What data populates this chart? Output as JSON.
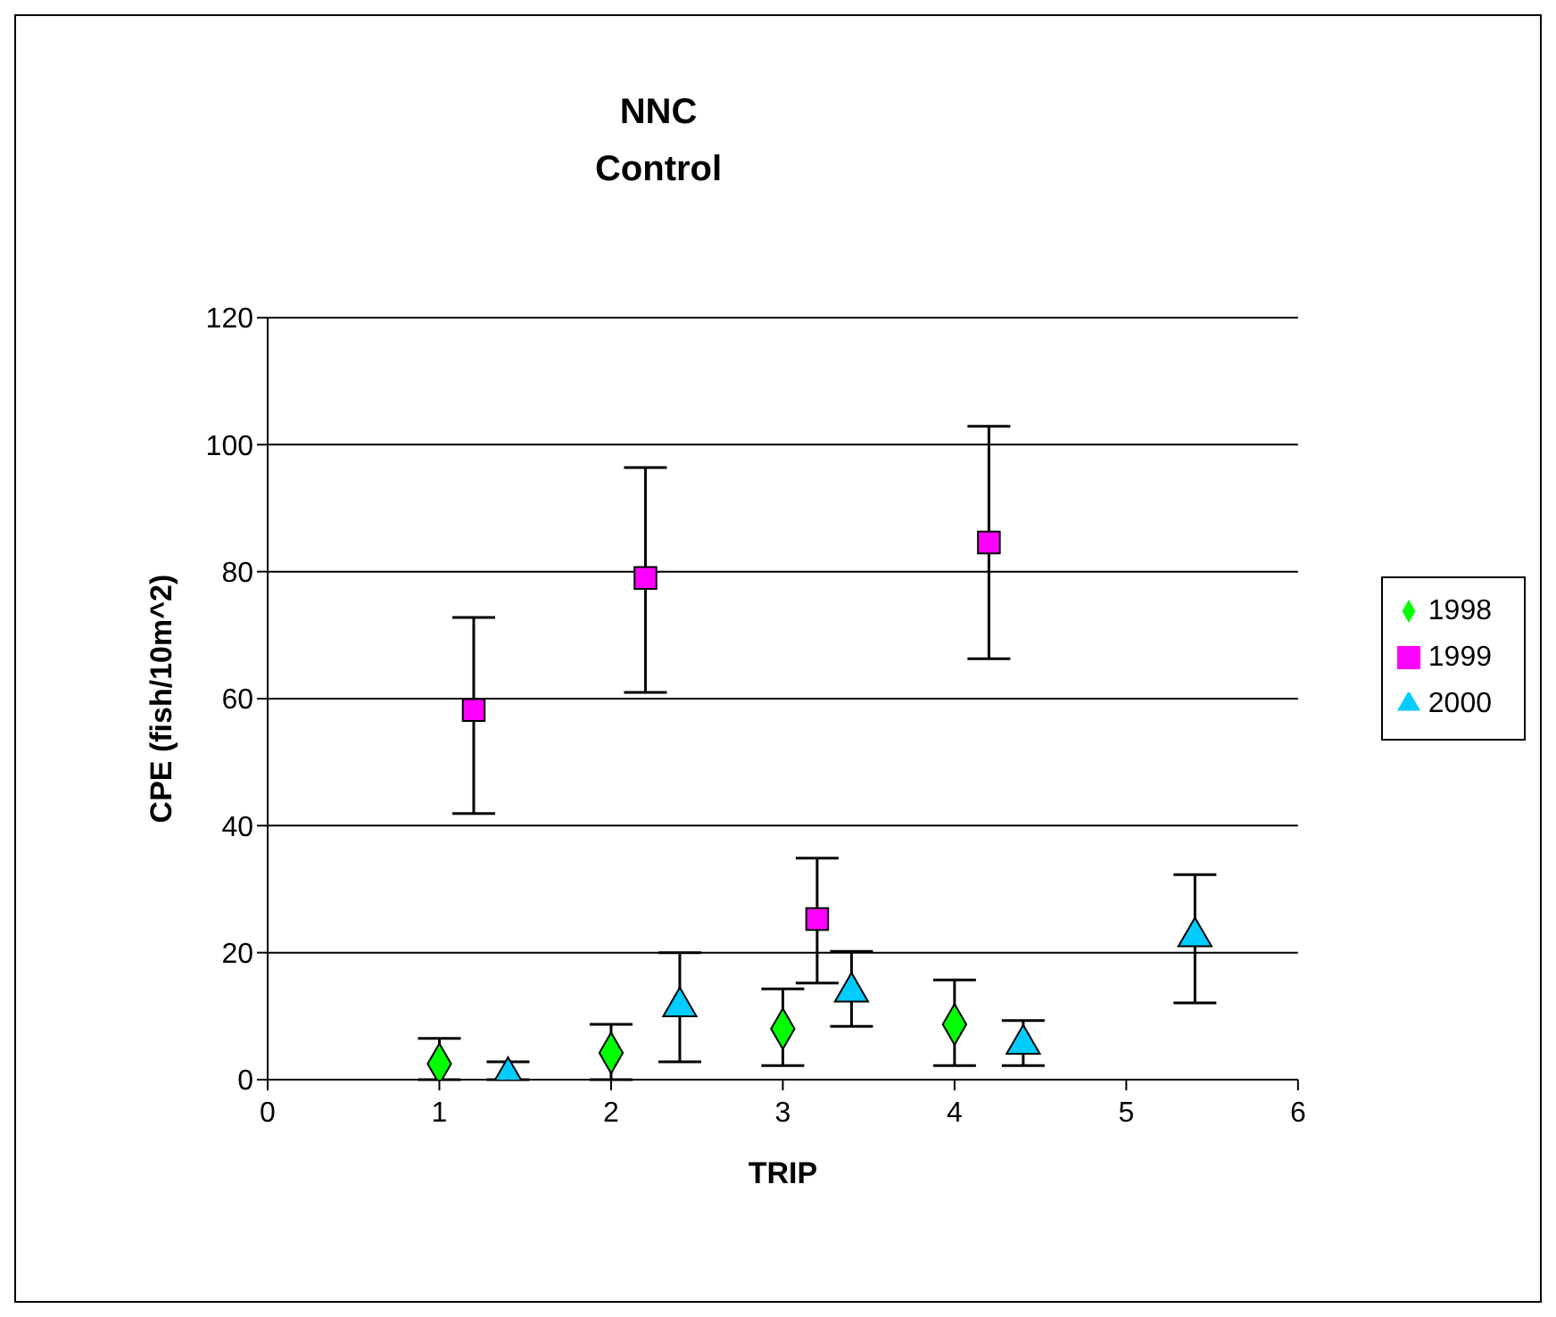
{
  "chart_data": {
    "type": "scatter",
    "title": "NNC",
    "subtitle": "Control",
    "xlabel": "TRIP",
    "ylabel": "CPE (fish/10m^2)",
    "xlim": [
      0,
      6
    ],
    "xticks": [
      0,
      1,
      2,
      3,
      4,
      5,
      6
    ],
    "ylim": [
      0,
      120
    ],
    "yticks": [
      0,
      20,
      40,
      60,
      80,
      100,
      120
    ],
    "grid": "y",
    "legend": "right",
    "series": [
      {
        "name": "1998",
        "color": "#00ff00",
        "marker": "diamond",
        "x": [
          1,
          2,
          3,
          4
        ],
        "values": [
          2.5,
          4.2,
          8,
          8.7
        ],
        "errors": [
          [
            0,
            6.5
          ],
          [
            0,
            8.7
          ],
          [
            2.2,
            14.3
          ],
          [
            2.2,
            15.7
          ]
        ]
      },
      {
        "name": "1999",
        "color": "#ff00ff",
        "marker": "square",
        "x": [
          1.2,
          2.2,
          3.2,
          4.2
        ],
        "values": [
          58.2,
          79,
          25.3,
          84.6
        ],
        "errors": [
          [
            41.9,
            72.8
          ],
          [
            61,
            96.4
          ],
          [
            15.2,
            34.9
          ],
          [
            66.3,
            102.9
          ]
        ]
      },
      {
        "name": "2000",
        "color": "#00ccff",
        "marker": "triangle",
        "x": [
          1.4,
          2.4,
          3.4,
          4.4,
          5.4
        ],
        "values": [
          0.5,
          11.5,
          13.8,
          5.6,
          22.5
        ],
        "errors": [
          [
            0,
            2.8
          ],
          [
            2.8,
            20
          ],
          [
            8.4,
            20.2
          ],
          [
            2.2,
            9.3
          ],
          [
            12.1,
            32.3
          ]
        ]
      }
    ]
  }
}
